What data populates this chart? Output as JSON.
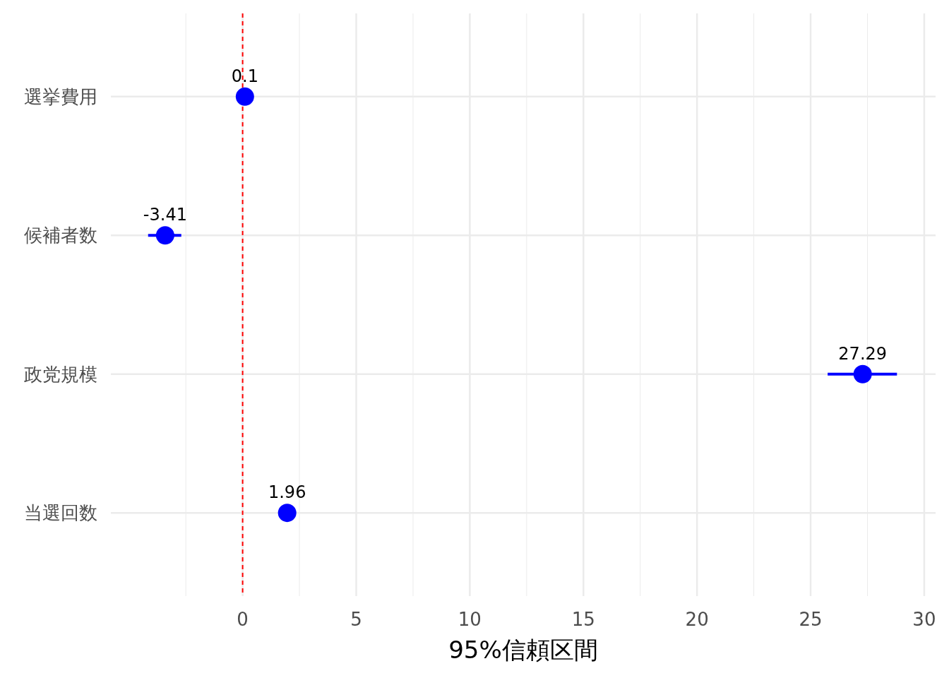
{
  "chart_data": {
    "type": "scatter",
    "orientation": "horizontal",
    "xlabel": "95%信頼区間",
    "categories": [
      "選挙費用",
      "候補者数",
      "政党規模",
      "当選回数"
    ],
    "values": [
      0.1,
      -3.41,
      27.29,
      1.96
    ],
    "errors": [
      null,
      [
        -4.16,
        -2.7
      ],
      [
        25.75,
        28.8
      ],
      null
    ],
    "color": "#0000ff",
    "marker": "circle",
    "data_labels": true,
    "xlim": [
      -5.8,
      30.5
    ],
    "xticks": [
      0,
      5,
      10,
      15,
      20,
      25,
      30
    ],
    "grid": true,
    "ref_lines": [
      {
        "axis": "x",
        "value": 0,
        "color": "#ff0000",
        "line_style": "dashed"
      }
    ]
  }
}
